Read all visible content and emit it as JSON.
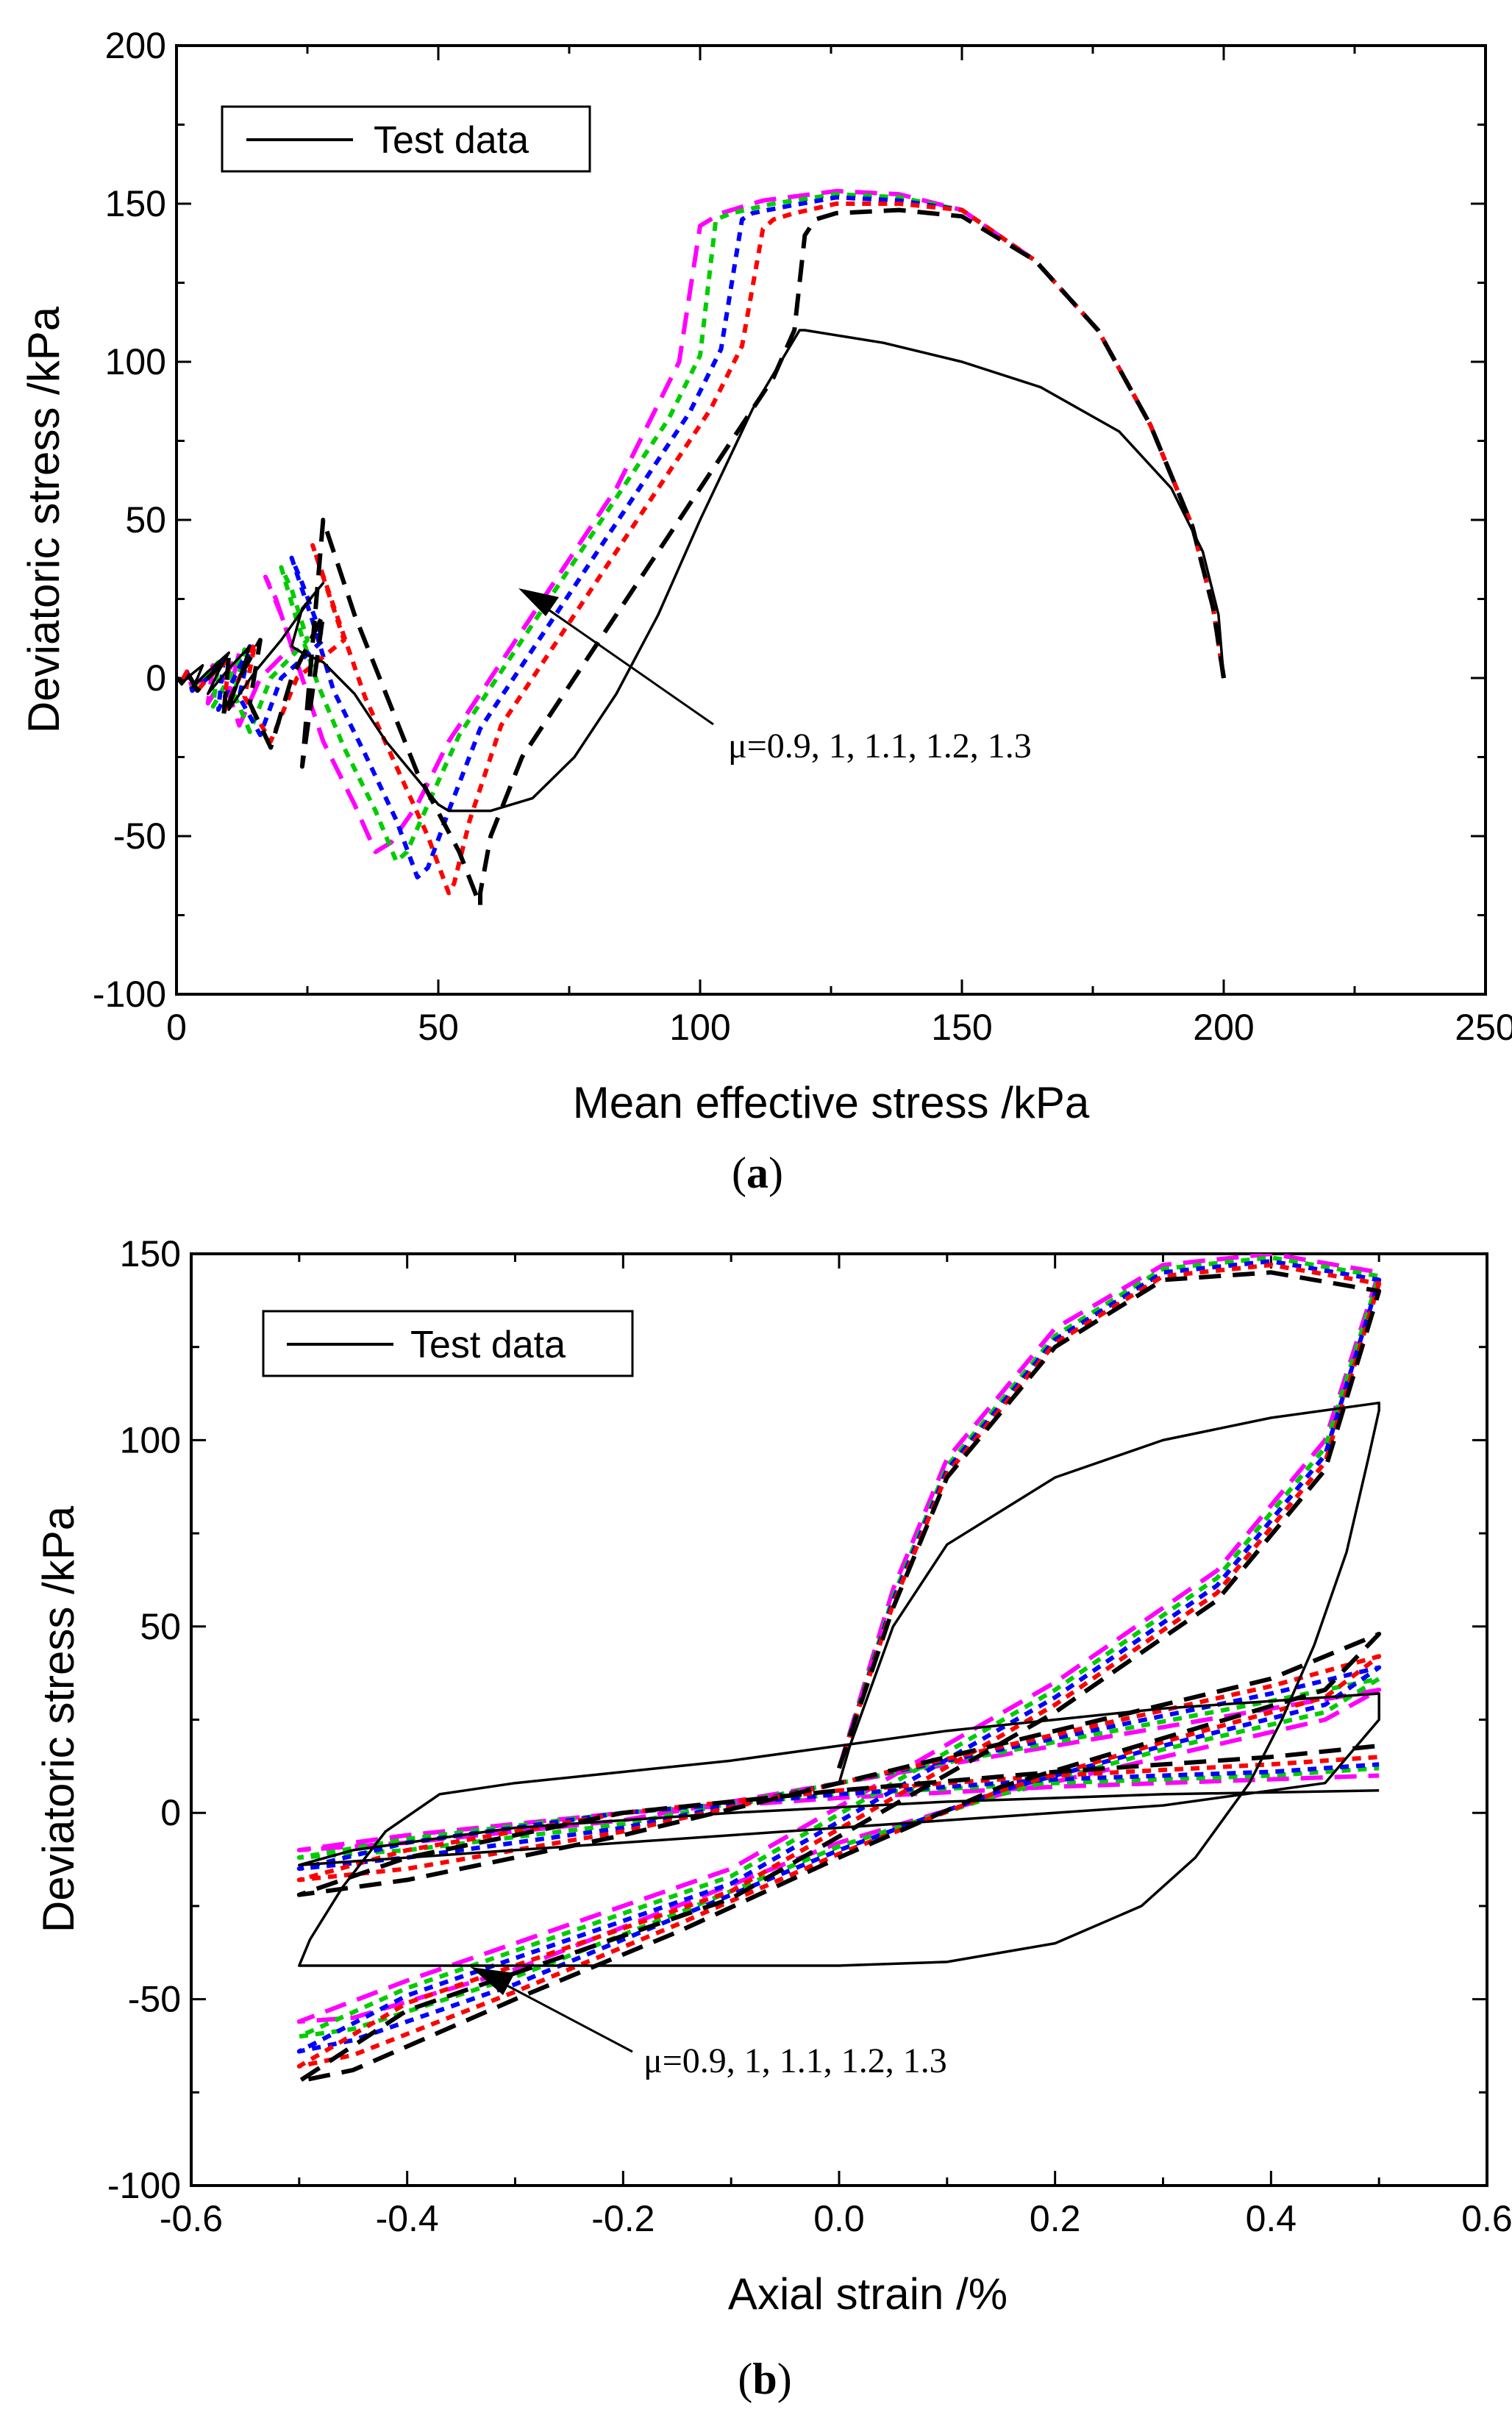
{
  "chart_data": [
    {
      "type": "line",
      "panel_label": "a",
      "xlabel": "Mean effective stress /kPa",
      "ylabel": "Deviatoric stress /kPa",
      "xlim": [
        0,
        250
      ],
      "ylim": [
        -100,
        200
      ],
      "xticks": [
        "0",
        "50",
        "100",
        "150",
        "200",
        "250"
      ],
      "yticks": [
        "-100",
        "-50",
        "0",
        "50",
        "100",
        "150",
        "200"
      ],
      "legend": {
        "position": "top-left",
        "entries": [
          "Test data"
        ]
      },
      "annotation": "μ=0.9, 1, 1.1, 1.2, 1.3",
      "colors": [
        "#000000",
        "#ff0000",
        "#0000ff",
        "#00cc00",
        "#ff00ff"
      ],
      "series": [
        {
          "name": "Test data",
          "style": "solid",
          "color": "#000000",
          "x": [
            200,
            199,
            196,
            190,
            180,
            165,
            150,
            135,
            120,
            119,
            110,
            100,
            92,
            84,
            76,
            68,
            60,
            55,
            52,
            50,
            46,
            40,
            34,
            28,
            24,
            22,
            24,
            28,
            26,
            20,
            15,
            10,
            12,
            14,
            10,
            6,
            8,
            10,
            6,
            3,
            4,
            5,
            2,
            1,
            0
          ],
          "y": [
            0,
            20,
            40,
            60,
            78,
            92,
            100,
            106,
            110,
            110,
            85,
            50,
            20,
            -5,
            -25,
            -38,
            -42,
            -42,
            -42,
            -40,
            -32,
            -20,
            -5,
            5,
            8,
            10,
            22,
            30,
            26,
            12,
            2,
            -10,
            0,
            10,
            3,
            -5,
            2,
            8,
            2,
            -3,
            0,
            4,
            0,
            -2,
            0
          ]
        },
        {
          "name": "μ=0.9",
          "style": "dash",
          "color": "#ff00ff",
          "x": [
            200,
            198,
            194,
            186,
            176,
            164,
            150,
            138,
            126,
            112,
            104,
            100,
            96,
            90,
            84,
            76,
            68,
            60,
            52,
            46,
            41,
            38,
            34,
            28,
            24,
            20,
            17,
            19,
            22,
            16,
            12,
            10,
            12,
            9,
            6,
            7,
            5,
            3,
            2,
            1,
            0
          ],
          "y": [
            0,
            22,
            48,
            80,
            110,
            132,
            148,
            153,
            154,
            151,
            147,
            143,
            100,
            80,
            60,
            40,
            20,
            0,
            -20,
            -40,
            -52,
            -55,
            -40,
            -20,
            0,
            20,
            32,
            25,
            10,
            0,
            -15,
            -5,
            8,
            0,
            -8,
            4,
            0,
            -3,
            2,
            -1,
            0
          ]
        },
        {
          "name": "μ=1",
          "style": "dot",
          "color": "#00cc00",
          "x": [
            200,
            198,
            194,
            186,
            176,
            164,
            150,
            138,
            126,
            114,
            106,
            103,
            100,
            94,
            86,
            78,
            70,
            62,
            54,
            48,
            44,
            42,
            38,
            32,
            27,
            23,
            20,
            22,
            25,
            18,
            14,
            11,
            13,
            10,
            7,
            8,
            5,
            3,
            2,
            1,
            0
          ],
          "y": [
            0,
            22,
            48,
            80,
            110,
            132,
            148,
            152,
            153,
            150,
            147,
            145,
            102,
            82,
            62,
            42,
            22,
            2,
            -18,
            -40,
            -55,
            -58,
            -42,
            -22,
            -2,
            18,
            35,
            28,
            12,
            0,
            -17,
            -5,
            9,
            0,
            -9,
            5,
            0,
            -3,
            2,
            -1,
            0
          ]
        },
        {
          "name": "μ=1.1",
          "style": "dot",
          "color": "#0000ff",
          "x": [
            200,
            198,
            194,
            186,
            176,
            164,
            150,
            138,
            126,
            116,
            110,
            108,
            104,
            98,
            90,
            82,
            74,
            66,
            58,
            52,
            48,
            46,
            42,
            36,
            30,
            26,
            22,
            24,
            28,
            20,
            16,
            12,
            14,
            11,
            8,
            9,
            6,
            3,
            2,
            1,
            0
          ],
          "y": [
            0,
            22,
            48,
            80,
            110,
            132,
            148,
            151,
            152,
            149,
            147,
            145,
            104,
            84,
            64,
            44,
            24,
            4,
            -16,
            -42,
            -60,
            -63,
            -45,
            -24,
            -4,
            18,
            38,
            30,
            12,
            0,
            -18,
            -6,
            10,
            0,
            -10,
            6,
            0,
            -4,
            2,
            -1,
            0
          ]
        },
        {
          "name": "μ=1.2",
          "style": "dot",
          "color": "#ff0000",
          "x": [
            200,
            198,
            194,
            186,
            176,
            164,
            150,
            138,
            126,
            118,
            114,
            112,
            108,
            102,
            94,
            86,
            78,
            70,
            62,
            56,
            53,
            52,
            48,
            42,
            36,
            31,
            26,
            28,
            32,
            23,
            18,
            13,
            15,
            12,
            9,
            10,
            6,
            4,
            2,
            1,
            0
          ],
          "y": [
            0,
            22,
            48,
            80,
            110,
            132,
            148,
            150,
            150,
            147,
            145,
            142,
            105,
            85,
            65,
            45,
            25,
            5,
            -15,
            -45,
            -65,
            -68,
            -50,
            -28,
            -6,
            18,
            42,
            32,
            12,
            0,
            -20,
            -6,
            11,
            0,
            -11,
            6,
            0,
            -4,
            2,
            -1,
            0
          ]
        },
        {
          "name": "μ=1.3",
          "style": "dash",
          "color": "#000000",
          "x": [
            200,
            198,
            194,
            186,
            176,
            164,
            150,
            138,
            126,
            122,
            120,
            118,
            114,
            106,
            98,
            90,
            82,
            74,
            66,
            60,
            58,
            58,
            54,
            46,
            40,
            34,
            28,
            24,
            28,
            22,
            18,
            14,
            16,
            12,
            9,
            10,
            6,
            4,
            2,
            1,
            0
          ],
          "y": [
            0,
            22,
            48,
            80,
            110,
            132,
            146,
            148,
            147,
            145,
            140,
            110,
            95,
            75,
            55,
            35,
            15,
            -5,
            -25,
            -50,
            -68,
            -72,
            -55,
            -30,
            -5,
            20,
            50,
            -28,
            20,
            0,
            -22,
            -8,
            12,
            0,
            -12,
            7,
            0,
            -4,
            2,
            -1,
            0
          ]
        }
      ]
    },
    {
      "type": "line",
      "panel_label": "b",
      "xlabel": "Axial strain /%",
      "ylabel": "Deviatoric stress /kPa",
      "xlim": [
        -0.6,
        0.6
      ],
      "ylim": [
        -100,
        150
      ],
      "xticks": [
        "-0.6",
        "-0.4",
        "-0.2",
        "0.0",
        "0.2",
        "0.4",
        "0.6"
      ],
      "yticks": [
        "-100",
        "-50",
        "0",
        "50",
        "100",
        "150"
      ],
      "legend": {
        "position": "top-left",
        "entries": [
          "Test data"
        ]
      },
      "annotation": "μ=0.9, 1, 1.1, 1.2, 1.3",
      "colors": [
        "#000000",
        "#ff0000",
        "#0000ff",
        "#00cc00",
        "#ff00ff"
      ],
      "series": [
        {
          "name": "Test data",
          "style": "solid",
          "color": "#000000",
          "x": [
            0.0,
            0.01,
            0.05,
            0.1,
            0.2,
            0.3,
            0.4,
            0.5,
            0.5,
            0.49,
            0.47,
            0.44,
            0.41,
            0.38,
            0.36,
            0.33,
            0.28,
            0.2,
            0.1,
            0.0,
            -0.1,
            -0.2,
            -0.3,
            -0.4,
            -0.5,
            -0.49,
            -0.46,
            -0.42,
            -0.37,
            -0.3,
            -0.2,
            -0.1,
            0.0,
            0.1,
            0.2,
            0.3,
            0.4,
            0.5,
            0.5,
            0.45,
            0.3,
            0.1,
            -0.1,
            -0.3,
            -0.5,
            -0.45,
            -0.3,
            -0.1,
            0.1,
            0.3,
            0.5
          ],
          "y": [
            8,
            18,
            50,
            72,
            90,
            100,
            106,
            110,
            108,
            95,
            70,
            45,
            25,
            8,
            0,
            -12,
            -25,
            -35,
            -40,
            -41,
            -41,
            -41,
            -41,
            -41,
            -41,
            -34,
            -20,
            -5,
            5,
            8,
            11,
            14,
            18,
            22,
            25,
            28,
            30,
            32,
            25,
            8,
            2,
            -2,
            -6,
            -10,
            -14,
            -10,
            -4,
            0,
            3,
            5,
            6
          ]
        },
        {
          "name": "μ=0.9",
          "style": "dash",
          "color": "#ff00ff",
          "x": [
            0.0,
            0.05,
            0.1,
            0.2,
            0.3,
            0.4,
            0.5,
            0.45,
            0.35,
            0.2,
            0.05,
            -0.1,
            -0.25,
            -0.4,
            -0.5,
            -0.45,
            -0.3,
            -0.15,
            0.0,
            0.15,
            0.3,
            0.45,
            0.5,
            0.4,
            0.2,
            0.0,
            -0.2,
            -0.4,
            -0.5,
            -0.4,
            -0.2,
            0.0,
            0.2,
            0.4,
            0.5
          ],
          "y": [
            12,
            60,
            95,
            130,
            147,
            150,
            145,
            100,
            65,
            35,
            10,
            -15,
            -30,
            -45,
            -56,
            -55,
            -42,
            -25,
            -8,
            5,
            15,
            25,
            33,
            28,
            18,
            8,
            -2,
            -8,
            -10,
            -6,
            0,
            4,
            7,
            9,
            10
          ]
        },
        {
          "name": "μ=1",
          "style": "dot",
          "color": "#00cc00",
          "x": [
            0.0,
            0.05,
            0.1,
            0.2,
            0.3,
            0.4,
            0.5,
            0.45,
            0.35,
            0.2,
            0.05,
            -0.1,
            -0.25,
            -0.4,
            -0.5,
            -0.45,
            -0.3,
            -0.15,
            0.0,
            0.15,
            0.3,
            0.45,
            0.5,
            0.4,
            0.2,
            0.0,
            -0.2,
            -0.4,
            -0.5,
            -0.4,
            -0.2,
            0.0,
            0.2,
            0.4,
            0.5
          ],
          "y": [
            12,
            58,
            93,
            128,
            146,
            149,
            144,
            98,
            63,
            33,
            8,
            -17,
            -32,
            -47,
            -60,
            -58,
            -44,
            -27,
            -9,
            5,
            17,
            27,
            36,
            30,
            19,
            8,
            -3,
            -10,
            -12,
            -7,
            0,
            5,
            8,
            10,
            12
          ]
        },
        {
          "name": "μ=1.1",
          "style": "dot",
          "color": "#0000ff",
          "x": [
            0.0,
            0.05,
            0.1,
            0.2,
            0.3,
            0.4,
            0.5,
            0.45,
            0.35,
            0.2,
            0.05,
            -0.1,
            -0.25,
            -0.4,
            -0.5,
            -0.45,
            -0.3,
            -0.15,
            0.0,
            0.15,
            0.3,
            0.45,
            0.5,
            0.4,
            0.2,
            0.0,
            -0.2,
            -0.4,
            -0.5,
            -0.4,
            -0.2,
            0.0,
            0.2,
            0.4,
            0.5
          ],
          "y": [
            12,
            57,
            92,
            127,
            145,
            148,
            143,
            96,
            61,
            31,
            6,
            -19,
            -34,
            -49,
            -64,
            -61,
            -46,
            -28,
            -10,
            6,
            18,
            29,
            39,
            32,
            20,
            8,
            -4,
            -12,
            -15,
            -8,
            0,
            5,
            9,
            11,
            13
          ]
        },
        {
          "name": "μ=1.2",
          "style": "dot",
          "color": "#ff0000",
          "x": [
            0.0,
            0.05,
            0.1,
            0.2,
            0.3,
            0.4,
            0.5,
            0.45,
            0.35,
            0.2,
            0.05,
            -0.1,
            -0.25,
            -0.4,
            -0.5,
            -0.45,
            -0.3,
            -0.15,
            0.0,
            0.15,
            0.3,
            0.45,
            0.5,
            0.4,
            0.2,
            0.0,
            -0.2,
            -0.4,
            -0.5,
            -0.4,
            -0.2,
            0.0,
            0.2,
            0.4,
            0.5
          ],
          "y": [
            12,
            56,
            91,
            126,
            144,
            147,
            142,
            94,
            59,
            29,
            4,
            -21,
            -36,
            -51,
            -68,
            -65,
            -48,
            -30,
            -11,
            6,
            19,
            31,
            42,
            34,
            21,
            8,
            -5,
            -15,
            -18,
            -10,
            0,
            6,
            10,
            13,
            15
          ]
        },
        {
          "name": "μ=1.3",
          "style": "dash",
          "color": "#000000",
          "x": [
            0.0,
            0.05,
            0.1,
            0.2,
            0.3,
            0.4,
            0.5,
            0.45,
            0.35,
            0.2,
            0.05,
            -0.1,
            -0.25,
            -0.4,
            -0.5,
            -0.45,
            -0.3,
            -0.15,
            0.0,
            0.15,
            0.3,
            0.45,
            0.5,
            0.4,
            0.2,
            0.0,
            -0.2,
            -0.4,
            -0.5,
            -0.4,
            -0.2,
            0.0,
            0.2,
            0.4,
            0.5
          ],
          "y": [
            12,
            55,
            90,
            125,
            143,
            145,
            140,
            92,
            57,
            27,
            2,
            -23,
            -38,
            -53,
            -72,
            -69,
            -50,
            -32,
            -12,
            7,
            20,
            33,
            48,
            36,
            22,
            8,
            -6,
            -18,
            -22,
            -12,
            0,
            6,
            11,
            15,
            18
          ]
        }
      ]
    }
  ]
}
